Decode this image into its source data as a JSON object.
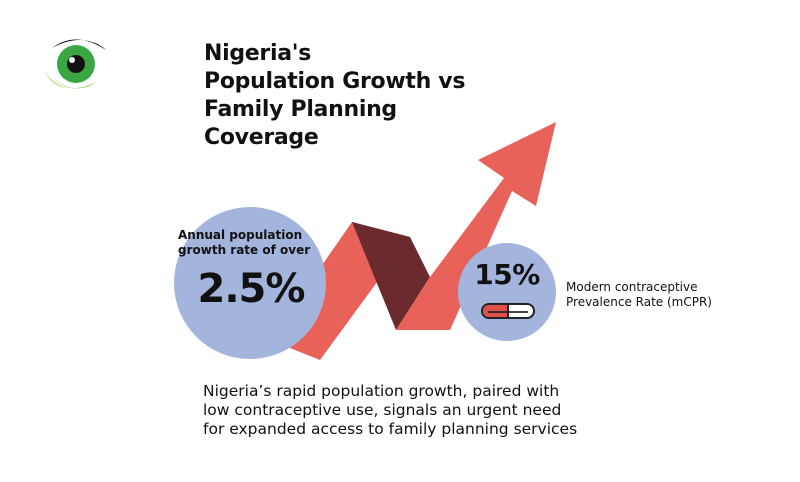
{
  "title": {
    "lines": [
      "Nigeria's",
      "Population Growth vs",
      "Family Planning",
      "Coverage"
    ]
  },
  "growth": {
    "label_lines": [
      "Annual population",
      "growth rate of over"
    ],
    "value": "2.5%"
  },
  "mcpr": {
    "value": "15%",
    "label_lines": [
      "Modern contraceptive",
      "Prevalence Rate (mCPR)"
    ]
  },
  "summary": {
    "lines": [
      "Nigeria’s rapid population growth, paired with",
      "low contraceptive use, signals an urgent need",
      "for expanded access to family planning services"
    ]
  },
  "icons": [
    "eye-logo-icon",
    "trend-arrow-icon",
    "pill-icon"
  ],
  "colors": {
    "arrow": "#e9625a",
    "arrow_shadow": "#6b2a2d",
    "circle": "#a3b5dc",
    "logo_green": "#3aa644",
    "logo_lime": "#8dc63f",
    "text": "#111111"
  }
}
